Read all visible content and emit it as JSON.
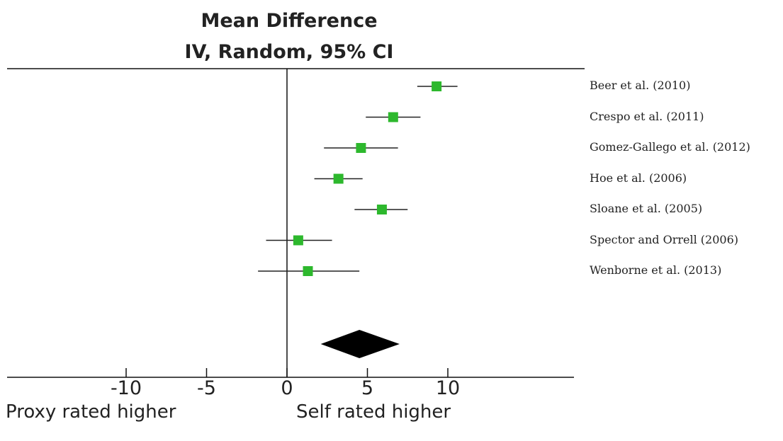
{
  "chart_data": {
    "type": "forest",
    "title": "Mean Difference",
    "subtitle": "IV, Random, 95% CI",
    "xlim": [
      -17.5,
      18
    ],
    "xticks": [
      -10,
      -5,
      0,
      5,
      10
    ],
    "xtick_labels": [
      "-10",
      "-5",
      "0",
      "5",
      "10"
    ],
    "label_left": "Proxy rated higher",
    "label_right": "Self rated higher",
    "marker_color": "#2db82d",
    "studies": [
      {
        "label": "Beer et al. (2010)",
        "estimate": 9.3,
        "ci": [
          8.1,
          10.6
        ]
      },
      {
        "label": "Crespo et al. (2011)",
        "estimate": 6.6,
        "ci": [
          4.9,
          8.3
        ]
      },
      {
        "label": "Gomez-Gallego et al. (2012)",
        "estimate": 4.6,
        "ci": [
          2.3,
          6.9
        ]
      },
      {
        "label": "Hoe et al. (2006)",
        "estimate": 3.2,
        "ci": [
          1.7,
          4.7
        ]
      },
      {
        "label": "Sloane et al. (2005)",
        "estimate": 5.9,
        "ci": [
          4.2,
          7.5
        ]
      },
      {
        "label": "Spector and Orrell (2006)",
        "estimate": 0.7,
        "ci": [
          -1.3,
          2.8
        ]
      },
      {
        "label": "Wenborne et al. (2013)",
        "estimate": 1.3,
        "ci": [
          -1.8,
          4.5
        ]
      }
    ],
    "pooled": {
      "estimate": 4.5,
      "ci": [
        2.1,
        7.0
      ]
    }
  }
}
